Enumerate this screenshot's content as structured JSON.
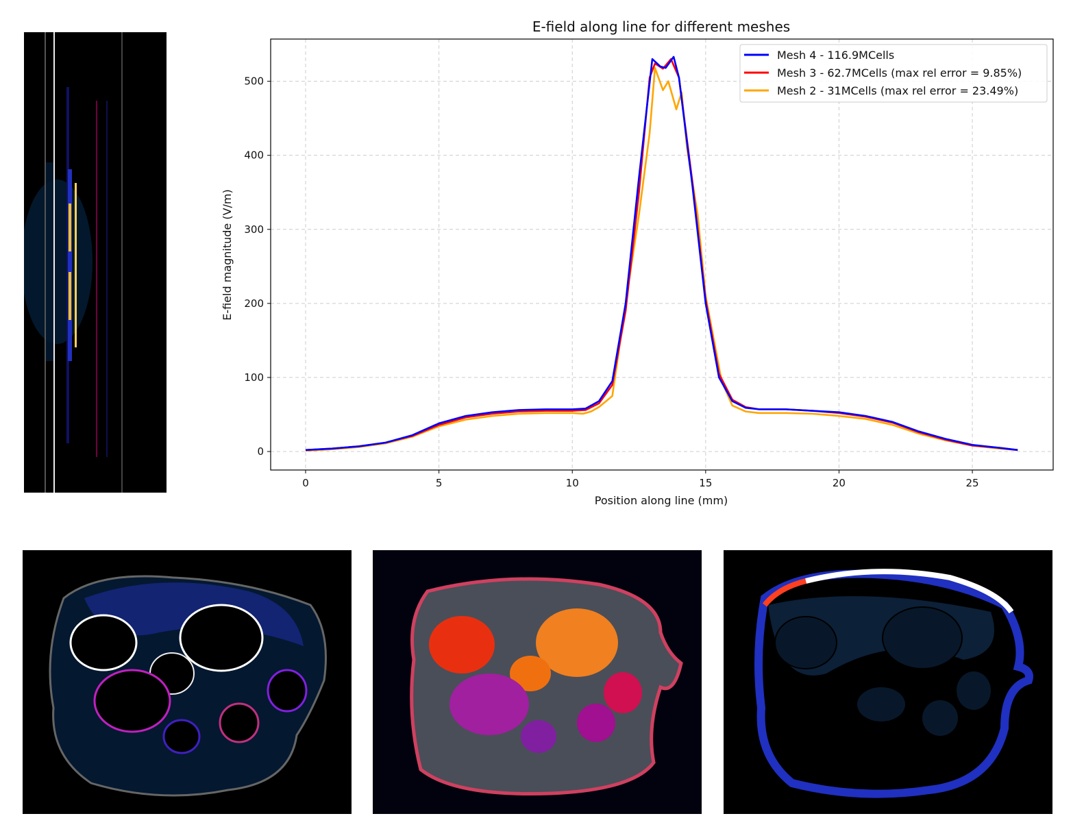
{
  "chart_data": {
    "type": "line",
    "title": "E-field along line for different meshes",
    "xlabel": "Position along line (mm)",
    "ylabel": "E-field magnitude (V/m)",
    "xlim": [
      -1.31,
      28.03
    ],
    "ylim": [
      -25,
      557
    ],
    "xticks": [
      0,
      5,
      10,
      15,
      20,
      25
    ],
    "yticks": [
      0,
      100,
      200,
      300,
      400,
      500
    ],
    "grid": true,
    "legend_position": "top-right",
    "series": [
      {
        "name": "Mesh 4 - 116.9MCells",
        "color": "#0000ff",
        "x": [
          0,
          1,
          2,
          3,
          4,
          5,
          6,
          7,
          8,
          9,
          10,
          10.5,
          11,
          11.5,
          12,
          12.5,
          13,
          13.3,
          13.5,
          13.8,
          14,
          14.5,
          15,
          15.5,
          16,
          16.5,
          17,
          18,
          19,
          20,
          21,
          22,
          23,
          24,
          25,
          26,
          26.7
        ],
        "y": [
          2,
          4,
          7,
          12,
          22,
          38,
          48,
          53,
          56,
          57,
          57,
          58,
          68,
          95,
          200,
          370,
          530,
          520,
          518,
          533,
          505,
          360,
          200,
          100,
          68,
          59,
          57,
          57,
          55,
          53,
          48,
          40,
          27,
          17,
          9,
          5,
          2
        ]
      },
      {
        "name": "Mesh 3 - 62.7MCells (max rel error = 9.85%)",
        "color": "#ff0000",
        "x": [
          0,
          1,
          2,
          3,
          4,
          5,
          6,
          7,
          8,
          9,
          10,
          10.5,
          11,
          11.5,
          12,
          12.5,
          12.9,
          13.1,
          13.4,
          13.7,
          14,
          14.5,
          15,
          15.5,
          16,
          16.5,
          17,
          18,
          19,
          20,
          21,
          22,
          23,
          24,
          25,
          26,
          26.7
        ],
        "y": [
          2,
          4,
          7,
          12,
          21,
          36,
          46,
          51,
          54,
          55,
          55,
          56,
          65,
          90,
          190,
          350,
          505,
          524,
          517,
          530,
          505,
          365,
          205,
          105,
          70,
          60,
          57,
          57,
          55,
          52,
          47,
          39,
          26,
          16,
          8,
          5,
          2
        ]
      },
      {
        "name": "Mesh 2 - 31MCells (max rel error = 23.49%)",
        "color": "#ffa500",
        "x": [
          0,
          1,
          2,
          3,
          4,
          5,
          6,
          7,
          8,
          9,
          10,
          10.4,
          10.7,
          11,
          11.5,
          12,
          12.5,
          12.9,
          13.1,
          13.4,
          13.6,
          13.9,
          14.1,
          14.3,
          14.7,
          15,
          15.6,
          16,
          16.5,
          17,
          18,
          19,
          20,
          21,
          22,
          23,
          24,
          25,
          26,
          26.7
        ],
        "y": [
          1,
          3,
          6,
          11,
          20,
          34,
          43,
          48,
          51,
          52,
          52,
          51,
          54,
          60,
          75,
          200,
          320,
          430,
          518,
          488,
          500,
          462,
          485,
          410,
          320,
          210,
          95,
          62,
          54,
          52,
          52,
          51,
          48,
          44,
          36,
          24,
          15,
          8,
          4,
          2
        ]
      }
    ]
  },
  "panels": {
    "left_strip": "side-view field map",
    "bottom": [
      "cross-section field map 1",
      "cross-section field map 2",
      "cross-section field map 3"
    ]
  }
}
